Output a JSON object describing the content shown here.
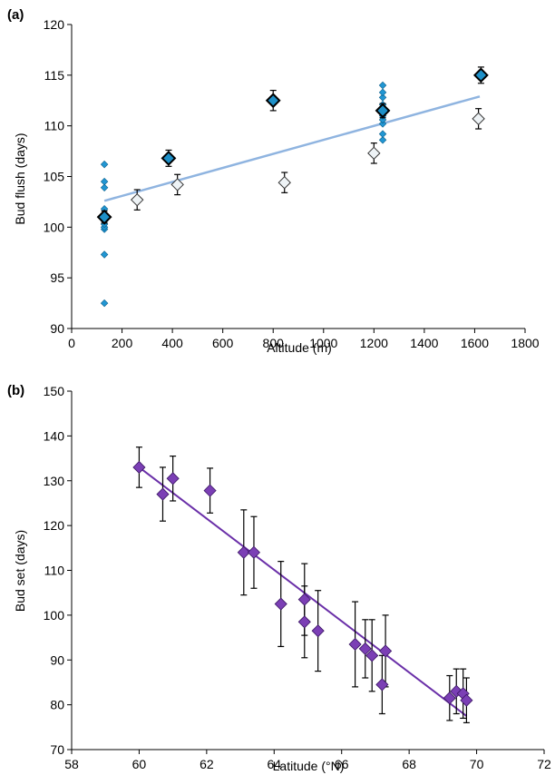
{
  "chart_data": [
    {
      "panel": "(a)",
      "type": "scatter",
      "xlabel": "Altitude (m)",
      "ylabel": "Bud flush (days)",
      "xlim": [
        0,
        1800
      ],
      "ylim": [
        90,
        120
      ],
      "xticks": [
        0,
        200,
        400,
        600,
        800,
        1000,
        1200,
        1400,
        1600,
        1800
      ],
      "yticks": [
        90,
        95,
        100,
        105,
        110,
        115,
        120
      ],
      "grid": false,
      "colors": {
        "small": "#2196d3",
        "large": "#1e90c8",
        "open": "#eef3f6",
        "trend": "#8fb4e0"
      },
      "series": [
        {
          "marker": "small-blue-diamond",
          "points": [
            [
              130,
              92.5
            ],
            [
              130,
              97.3
            ],
            [
              130,
              99.8
            ],
            [
              130,
              100.0
            ],
            [
              130,
              100.3
            ],
            [
              130,
              100.6
            ],
            [
              130,
              101.2
            ],
            [
              130,
              101.8
            ],
            [
              130,
              103.9
            ],
            [
              130,
              104.5
            ],
            [
              130,
              106.2
            ],
            [
              1235,
              108.6
            ],
            [
              1235,
              109.2
            ],
            [
              1235,
              110.2
            ],
            [
              1235,
              110.6
            ],
            [
              1235,
              111.0
            ],
            [
              1235,
              111.6
            ],
            [
              1235,
              112.1
            ],
            [
              1235,
              112.8
            ],
            [
              1235,
              113.3
            ],
            [
              1235,
              114.0
            ]
          ]
        },
        {
          "marker": "large-blue-diamond",
          "points": [
            {
              "x": 130,
              "y": 101.0,
              "err": 0.6
            },
            {
              "x": 385,
              "y": 106.8,
              "err": 0.8
            },
            {
              "x": 800,
              "y": 112.5,
              "err": 1.0
            },
            {
              "x": 1235,
              "y": 111.5,
              "err": 0.7
            },
            {
              "x": 1625,
              "y": 115.0,
              "err": 0.8
            }
          ]
        },
        {
          "marker": "open-diamond",
          "points": [
            {
              "x": 260,
              "y": 102.7,
              "err": 1.0
            },
            {
              "x": 420,
              "y": 104.2,
              "err": 1.0
            },
            {
              "x": 845,
              "y": 104.4,
              "err": 1.0
            },
            {
              "x": 1200,
              "y": 107.3,
              "err": 1.0
            },
            {
              "x": 1615,
              "y": 110.7,
              "err": 1.0
            }
          ]
        }
      ],
      "trendline": {
        "x": [
          130,
          1620
        ],
        "y": [
          102.6,
          112.9
        ]
      }
    },
    {
      "panel": "(b)",
      "type": "scatter",
      "xlabel": "Latitude (°N)",
      "ylabel": "Bud set (days)",
      "xlim": [
        58,
        72
      ],
      "ylim": [
        70,
        150
      ],
      "xticks": [
        58,
        60,
        62,
        64,
        66,
        68,
        70,
        72
      ],
      "yticks": [
        70,
        80,
        90,
        100,
        110,
        120,
        130,
        140,
        150
      ],
      "grid": false,
      "colors": {
        "marker": "#7b3fb5",
        "trend": "#6a2fa8"
      },
      "series": [
        {
          "marker": "purple-diamond",
          "points": [
            {
              "x": 60.0,
              "y": 133.0,
              "err": 4.5
            },
            {
              "x": 60.7,
              "y": 127.0,
              "err": 6.0
            },
            {
              "x": 61.0,
              "y": 130.5,
              "err": 5.0
            },
            {
              "x": 62.1,
              "y": 127.8,
              "err": 5.0
            },
            {
              "x": 63.1,
              "y": 114.0,
              "err": 9.5
            },
            {
              "x": 63.4,
              "y": 114.0,
              "err": 8.0
            },
            {
              "x": 64.2,
              "y": 102.5,
              "err": 9.5
            },
            {
              "x": 64.9,
              "y": 103.5,
              "err": 8.0
            },
            {
              "x": 64.9,
              "y": 98.5,
              "err": 8.0
            },
            {
              "x": 65.3,
              "y": 96.5,
              "err": 9.0
            },
            {
              "x": 66.4,
              "y": 93.5,
              "err": 9.5
            },
            {
              "x": 66.7,
              "y": 92.5,
              "err": 6.5
            },
            {
              "x": 66.9,
              "y": 91.0,
              "err": 8.0
            },
            {
              "x": 67.2,
              "y": 84.5,
              "err": 6.5
            },
            {
              "x": 67.3,
              "y": 92.0,
              "err": 8.0
            },
            {
              "x": 69.2,
              "y": 81.5,
              "err": 5.0
            },
            {
              "x": 69.4,
              "y": 83.0,
              "err": 5.0
            },
            {
              "x": 69.6,
              "y": 82.5,
              "err": 5.5
            },
            {
              "x": 69.7,
              "y": 81.0,
              "err": 5.0
            }
          ]
        }
      ],
      "trendline": {
        "x": [
          60.0,
          69.7
        ],
        "y": [
          133.0,
          77.5
        ]
      }
    }
  ]
}
